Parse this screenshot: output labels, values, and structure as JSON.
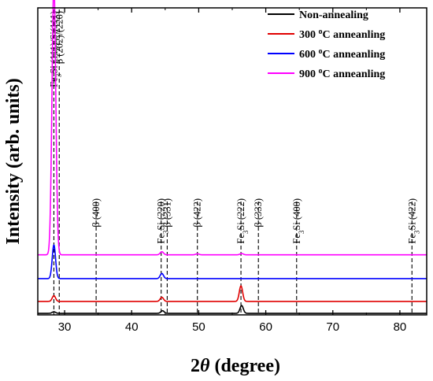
{
  "chart_data": {
    "type": "line",
    "xlabel_symbol": "2θ",
    "xlabel_unit": "(degree)",
    "ylabel": "Intensity (arb. units)",
    "xlim": [
      26,
      84
    ],
    "xticks": [
      30,
      40,
      50,
      60,
      70,
      80
    ],
    "yticks": "none",
    "legend_position": "top-right",
    "series": [
      {
        "name": "Non-annealing",
        "color": "#000000",
        "baseline": 0.0,
        "peaks": [
          {
            "x": 28.4,
            "height": 0.6,
            "width": 0.25
          },
          {
            "x": 44.6,
            "height": 1.0,
            "width": 0.25
          },
          {
            "x": 56.4,
            "height": 3.0,
            "width": 0.25
          }
        ]
      },
      {
        "name": "300 °C anneanling",
        "color": "#e00000",
        "baseline": 4.6,
        "peaks": [
          {
            "x": 28.4,
            "height": 2.2,
            "width": 0.25
          },
          {
            "x": 44.5,
            "height": 1.6,
            "width": 0.25
          },
          {
            "x": 56.3,
            "height": 6.0,
            "width": 0.25
          }
        ]
      },
      {
        "name": "600 °C anneanling",
        "color": "#0000ff",
        "baseline": 13.4,
        "peaks": [
          {
            "x": 28.4,
            "height": 13.0,
            "width": 0.25
          },
          {
            "x": 44.5,
            "height": 2.0,
            "width": 0.25
          }
        ]
      },
      {
        "name": "900 °C anneanling",
        "color": "#ff00ff",
        "baseline": 22.6,
        "peaks": [
          {
            "x": 28.4,
            "height": 105.0,
            "width": 0.28
          },
          {
            "x": 44.5,
            "height": 1.2,
            "width": 0.25
          },
          {
            "x": 49.8,
            "height": 0.4,
            "width": 0.25
          },
          {
            "x": 56.4,
            "height": 0.5,
            "width": 0.25
          }
        ]
      }
    ],
    "reference_lines": [
      {
        "x": 28.4,
        "label_parts": [
          "Fe",
          "3",
          "Si (111)/Si(111)"
        ]
      },
      {
        "x": 29.2,
        "label_parts": [
          "β (202)/(220)"
        ]
      },
      {
        "x": 34.7,
        "label_parts": [
          "β (400)"
        ]
      },
      {
        "x": 44.4,
        "label_parts": [
          "Fe",
          "3",
          "Si (220)"
        ]
      },
      {
        "x": 45.3,
        "label_parts": [
          "β (331)"
        ]
      },
      {
        "x": 49.8,
        "label_parts": [
          "β (422)"
        ]
      },
      {
        "x": 56.3,
        "label_parts": [
          "Fe",
          "3",
          "Si (222)"
        ]
      },
      {
        "x": 58.9,
        "label_parts": [
          "β (333)"
        ]
      },
      {
        "x": 64.6,
        "label_parts": [
          "Fe",
          "3",
          "Si (400)"
        ]
      },
      {
        "x": 81.8,
        "label_parts": [
          "Fe",
          "3",
          "Si (422)"
        ]
      }
    ]
  }
}
